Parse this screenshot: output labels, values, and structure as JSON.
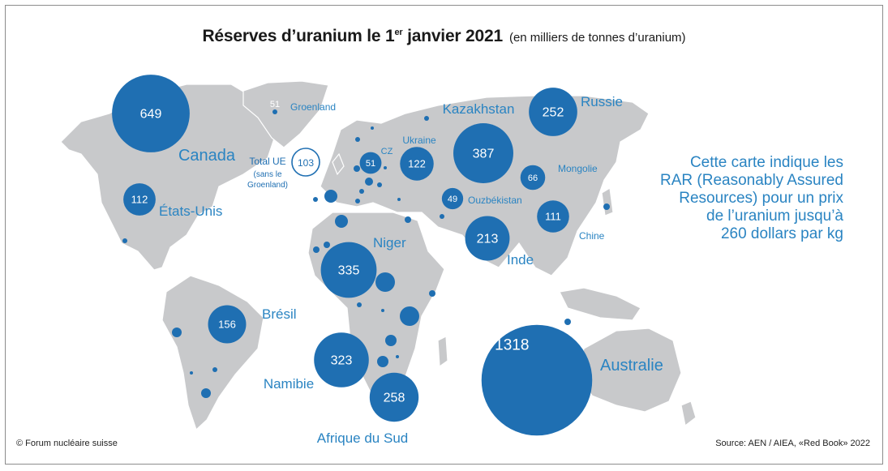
{
  "title": {
    "main_prefix": "Réserves d’uranium le 1",
    "main_sup": "er",
    "main_suffix": " janvier 2021",
    "subtitle": "(en milliers de tonnes d’uranium)"
  },
  "colors": {
    "bubble": "#1f6fb2",
    "land": "#c8c9cb",
    "label": "#2a84c2",
    "eu_ring": "#1f6fb2"
  },
  "countries": [
    {
      "name": "Canada",
      "value": 649
    },
    {
      "name": "États-Unis",
      "value": 112
    },
    {
      "name": "Brésil",
      "value": 156
    },
    {
      "name": "Niger",
      "value": 335
    },
    {
      "name": "Namibie",
      "value": 323
    },
    {
      "name": "Afrique du Sud",
      "value": 258
    },
    {
      "name": "Kazakhstan",
      "value": 387
    },
    {
      "name": "Russie",
      "value": 252
    },
    {
      "name": "Ukraine",
      "value": 122
    },
    {
      "name": "Mongolie",
      "value": 66
    },
    {
      "name": "Ouzbékistan",
      "value": 49
    },
    {
      "name": "Chine",
      "value": 111
    },
    {
      "name": "Inde",
      "value": 213
    },
    {
      "name": "Australie",
      "value": 1318
    },
    {
      "name": "CZ",
      "value": 51
    },
    {
      "name": "Groenland",
      "value": 51
    }
  ],
  "eu_total": {
    "label_line1": "Total UE",
    "label_line2": "(sans le",
    "label_line3": "Groenland)",
    "value": 103
  },
  "note": [
    "Cette carte indique les",
    "RAR (Reasonably Assured",
    "Resources) pour un prix",
    "de l’uranium jusqu’à",
    "260 dollars par kg"
  ],
  "credit": "© Forum nucléaire suisse",
  "source": "Source: AEN / AIEA, «Red Book» 2022"
}
